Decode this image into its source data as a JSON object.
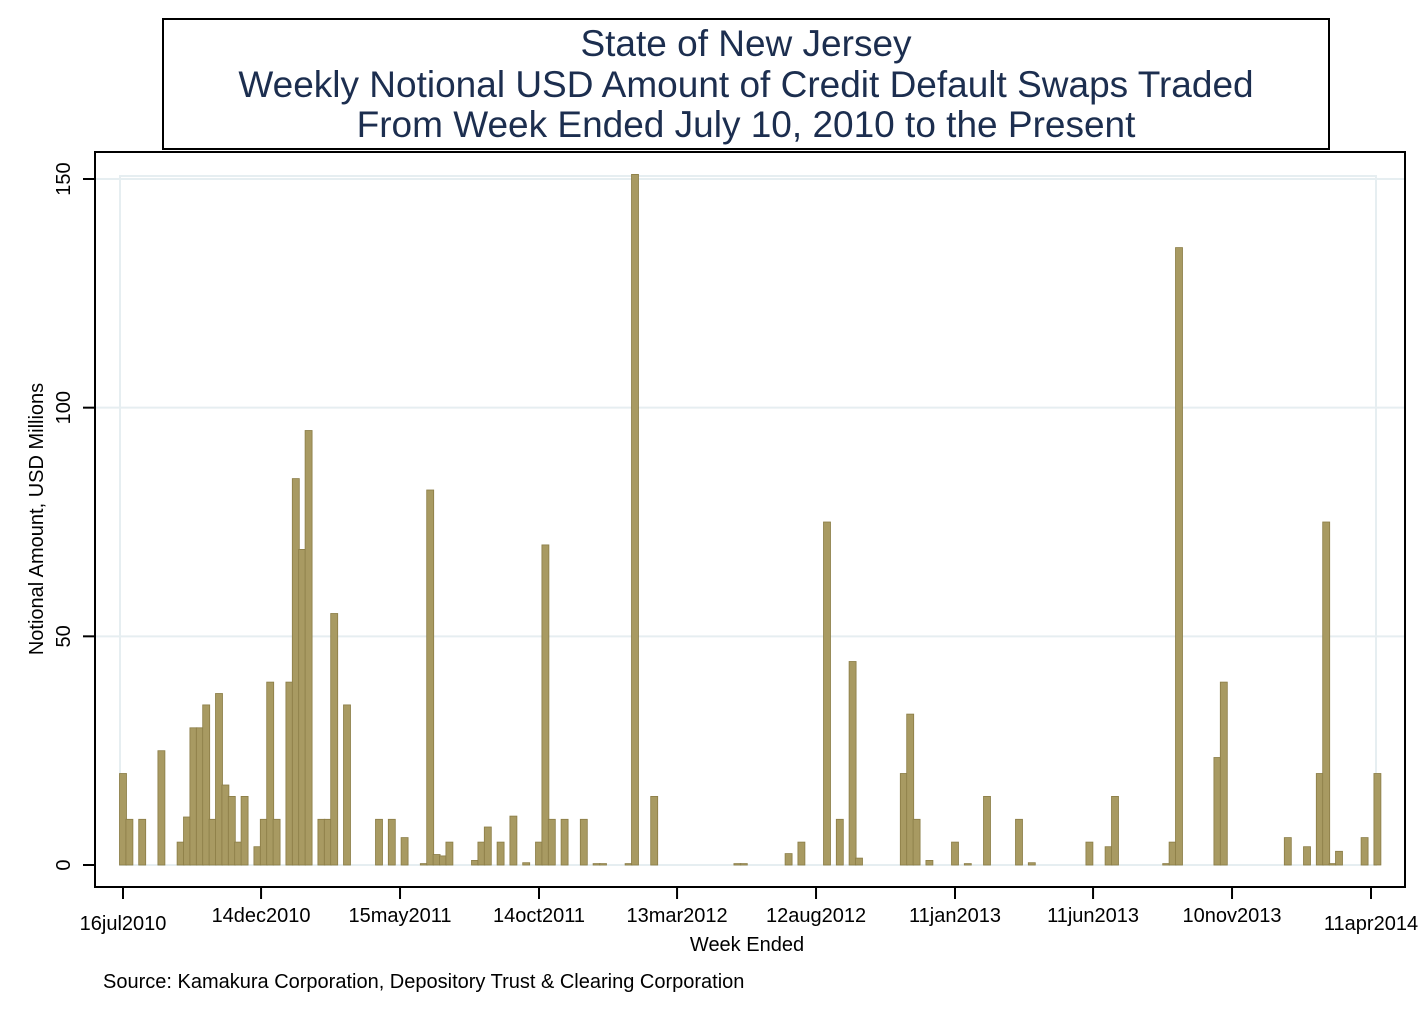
{
  "colors": {
    "bar_fill": "#a89a62",
    "bar_stroke": "#8a7c45",
    "grid": "#e6eef1",
    "title_text": "#1c2e4f",
    "axis": "#000000"
  },
  "chart_data": {
    "type": "bar",
    "title_lines": [
      "State of New Jersey",
      "Weekly Notional USD Amount of Credit Default Swaps Traded",
      "From Week Ended July 10, 2010 to the Present"
    ],
    "xlabel": "Week Ended",
    "ylabel": "Notional Amount, USD Millions",
    "source": "Source: Kamakura Corporation, Depository Trust & Clearing Corporation",
    "ylim": [
      0,
      150
    ],
    "yticks": [
      0,
      50,
      100,
      150
    ],
    "xlim": [
      "2010-07-16",
      "2014-04-11"
    ],
    "xticks": [
      {
        "date": "2010-07-16",
        "label": "16jul2010"
      },
      {
        "date": "2010-12-14",
        "label": "14dec2010"
      },
      {
        "date": "2011-05-15",
        "label": "15may2011"
      },
      {
        "date": "2011-10-14",
        "label": "14oct2011"
      },
      {
        "date": "2012-03-13",
        "label": "13mar2012"
      },
      {
        "date": "2012-08-12",
        "label": "12aug2012"
      },
      {
        "date": "2013-01-11",
        "label": "11jan2013"
      },
      {
        "date": "2013-06-11",
        "label": "11jun2013"
      },
      {
        "date": "2013-11-10",
        "label": "10nov2013"
      },
      {
        "date": "2014-04-11",
        "label": "11apr2014"
      }
    ],
    "grid": true,
    "legend": "none",
    "bars": [
      {
        "x": "2010-07-16",
        "y": 20
      },
      {
        "x": "2010-07-23",
        "y": 10
      },
      {
        "x": "2010-08-06",
        "y": 10
      },
      {
        "x": "2010-08-27",
        "y": 25
      },
      {
        "x": "2010-09-17",
        "y": 5
      },
      {
        "x": "2010-09-24",
        "y": 10.5
      },
      {
        "x": "2010-10-01",
        "y": 30
      },
      {
        "x": "2010-10-08",
        "y": 30
      },
      {
        "x": "2010-10-15",
        "y": 35
      },
      {
        "x": "2010-10-22",
        "y": 10
      },
      {
        "x": "2010-10-29",
        "y": 37.5
      },
      {
        "x": "2010-11-05",
        "y": 17.5
      },
      {
        "x": "2010-11-12",
        "y": 15
      },
      {
        "x": "2010-11-19",
        "y": 5
      },
      {
        "x": "2010-11-26",
        "y": 15
      },
      {
        "x": "2010-12-10",
        "y": 4
      },
      {
        "x": "2010-12-17",
        "y": 10
      },
      {
        "x": "2010-12-24",
        "y": 40
      },
      {
        "x": "2010-12-31",
        "y": 10
      },
      {
        "x": "2011-01-14",
        "y": 40
      },
      {
        "x": "2011-01-21",
        "y": 84.5
      },
      {
        "x": "2011-01-28",
        "y": 69
      },
      {
        "x": "2011-02-04",
        "y": 95
      },
      {
        "x": "2011-02-18",
        "y": 10
      },
      {
        "x": "2011-02-25",
        "y": 10
      },
      {
        "x": "2011-03-04",
        "y": 55
      },
      {
        "x": "2011-03-18",
        "y": 35
      },
      {
        "x": "2011-04-22",
        "y": 10
      },
      {
        "x": "2011-05-06",
        "y": 10
      },
      {
        "x": "2011-05-20",
        "y": 6
      },
      {
        "x": "2011-06-10",
        "y": 0.3
      },
      {
        "x": "2011-06-17",
        "y": 82
      },
      {
        "x": "2011-06-24",
        "y": 2.3
      },
      {
        "x": "2011-07-01",
        "y": 2
      },
      {
        "x": "2011-07-08",
        "y": 5
      },
      {
        "x": "2011-08-05",
        "y": 1
      },
      {
        "x": "2011-08-12",
        "y": 5
      },
      {
        "x": "2011-08-19",
        "y": 8.3
      },
      {
        "x": "2011-09-02",
        "y": 5
      },
      {
        "x": "2011-09-16",
        "y": 10.7
      },
      {
        "x": "2011-09-30",
        "y": 0.5
      },
      {
        "x": "2011-10-14",
        "y": 5
      },
      {
        "x": "2011-10-21",
        "y": 70
      },
      {
        "x": "2011-10-28",
        "y": 10
      },
      {
        "x": "2011-11-11",
        "y": 10
      },
      {
        "x": "2011-12-02",
        "y": 10
      },
      {
        "x": "2011-12-16",
        "y": 0.3
      },
      {
        "x": "2011-12-23",
        "y": 0.3
      },
      {
        "x": "2012-01-20",
        "y": 0.3
      },
      {
        "x": "2012-01-27",
        "y": 151
      },
      {
        "x": "2012-02-17",
        "y": 15
      },
      {
        "x": "2012-05-18",
        "y": 0.3
      },
      {
        "x": "2012-05-25",
        "y": 0.3
      },
      {
        "x": "2012-07-13",
        "y": 2.5
      },
      {
        "x": "2012-07-27",
        "y": 5
      },
      {
        "x": "2012-08-24",
        "y": 75
      },
      {
        "x": "2012-09-07",
        "y": 10
      },
      {
        "x": "2012-09-21",
        "y": 44.5
      },
      {
        "x": "2012-09-28",
        "y": 1.5
      },
      {
        "x": "2012-11-16",
        "y": 20
      },
      {
        "x": "2012-11-23",
        "y": 33
      },
      {
        "x": "2012-11-30",
        "y": 10
      },
      {
        "x": "2012-12-14",
        "y": 1
      },
      {
        "x": "2013-01-11",
        "y": 5
      },
      {
        "x": "2013-01-25",
        "y": 0.3
      },
      {
        "x": "2013-02-15",
        "y": 15
      },
      {
        "x": "2013-03-22",
        "y": 10
      },
      {
        "x": "2013-04-05",
        "y": 0.5
      },
      {
        "x": "2013-06-07",
        "y": 5
      },
      {
        "x": "2013-06-28",
        "y": 4
      },
      {
        "x": "2013-07-05",
        "y": 15
      },
      {
        "x": "2013-08-30",
        "y": 0.3
      },
      {
        "x": "2013-09-06",
        "y": 5
      },
      {
        "x": "2013-09-13",
        "y": 135
      },
      {
        "x": "2013-10-25",
        "y": 23.5
      },
      {
        "x": "2013-11-01",
        "y": 40
      },
      {
        "x": "2014-01-10",
        "y": 6
      },
      {
        "x": "2014-01-31",
        "y": 4
      },
      {
        "x": "2014-02-14",
        "y": 20
      },
      {
        "x": "2014-02-21",
        "y": 75
      },
      {
        "x": "2014-02-28",
        "y": 0.3
      },
      {
        "x": "2014-03-07",
        "y": 3
      },
      {
        "x": "2014-04-04",
        "y": 6
      },
      {
        "x": "2014-04-18",
        "y": 20
      }
    ]
  }
}
